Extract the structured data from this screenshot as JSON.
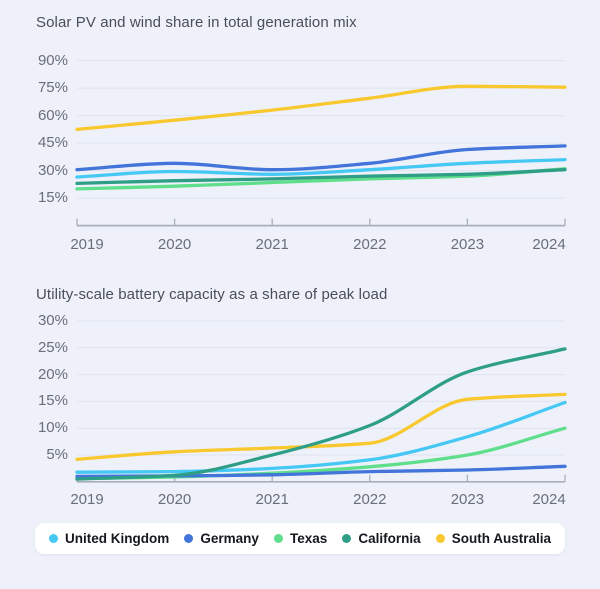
{
  "page": {
    "background_color": "#eef1fa"
  },
  "chart_data": [
    {
      "type": "line",
      "title": "Solar PV and wind share in total generation mix",
      "x": [
        2019,
        2020,
        2021,
        2022,
        2023,
        2024
      ],
      "x_tick_labels": [
        "2019",
        "2020",
        "2021",
        "2022",
        "2023",
        "2024"
      ],
      "y_tick_labels": [
        "90%",
        "75%",
        "60%",
        "45%",
        "30%",
        "15%"
      ],
      "y_tick_values": [
        90,
        75,
        60,
        45,
        30,
        15
      ],
      "ylim": [
        0,
        95
      ],
      "unit": "%",
      "grid": true,
      "series": [
        {
          "name": "United Kingdom",
          "color": "#45c8f4",
          "values": [
            26.5,
            29.5,
            28,
            30.5,
            34,
            36
          ]
        },
        {
          "name": "Germany",
          "color": "#4274da",
          "values": [
            30.5,
            34,
            30.5,
            34,
            41.5,
            43.5
          ]
        },
        {
          "name": "Texas",
          "color": "#5fde8c",
          "values": [
            20,
            21.5,
            23.5,
            25.5,
            27,
            31
          ]
        },
        {
          "name": "California",
          "color": "#2e9e86",
          "values": [
            23,
            24.5,
            25.5,
            27,
            28,
            30.5
          ]
        },
        {
          "name": "South Australia",
          "color": "#f8c82e",
          "values": [
            52.5,
            57.5,
            63,
            69.5,
            76,
            75.5
          ]
        }
      ],
      "draw_order": [
        "Texas",
        "United Kingdom",
        "South Australia",
        "Germany",
        "California"
      ]
    },
    {
      "type": "line",
      "title": "Utility-scale battery capacity as a share of peak load",
      "x": [
        2019,
        2020,
        2021,
        2022,
        2023,
        2024
      ],
      "x_tick_labels": [
        "2019",
        "2020",
        "2021",
        "2022",
        "2023",
        "2024"
      ],
      "y_tick_labels": [
        "30%",
        "25%",
        "20%",
        "15%",
        "10%",
        "5%"
      ],
      "y_tick_values": [
        30,
        25,
        20,
        15,
        10,
        5
      ],
      "ylim": [
        0,
        32
      ],
      "unit": "%",
      "grid": true,
      "series": [
        {
          "name": "United Kingdom",
          "color": "#45c8f4",
          "values": [
            1.8,
            1.9,
            2.5,
            4.1,
            8.4,
            14.8
          ]
        },
        {
          "name": "Germany",
          "color": "#4274da",
          "values": [
            1.0,
            1.1,
            1.3,
            1.9,
            2.2,
            2.9
          ]
        },
        {
          "name": "Texas",
          "color": "#5fde8c",
          "values": [
            0.6,
            0.9,
            1.6,
            2.8,
            5.0,
            10.0
          ]
        },
        {
          "name": "California",
          "color": "#2e9e86",
          "values": [
            0.5,
            1.2,
            5.0,
            10.5,
            20.5,
            24.8
          ]
        },
        {
          "name": "South Australia",
          "color": "#f8c82e",
          "values": [
            4.2,
            5.6,
            6.3,
            7.2,
            15.4,
            16.3
          ]
        }
      ],
      "draw_order": [
        "Texas",
        "United Kingdom",
        "South Australia",
        "Germany",
        "California"
      ]
    }
  ],
  "legend": {
    "items": [
      {
        "label": "United Kingdom",
        "color": "#45c8f4"
      },
      {
        "label": "Germany",
        "color": "#4274da"
      },
      {
        "label": "Texas",
        "color": "#5fde8c"
      },
      {
        "label": "California",
        "color": "#2e9e86"
      },
      {
        "label": "South Australia",
        "color": "#f8c82e"
      }
    ]
  },
  "style": {
    "gridline_color": "#dfe3ee",
    "axis_color": "#a9aeb9",
    "tick_label_color": "#6a6e79",
    "title_color": "#4a4e58",
    "legend_background": "#ffffff"
  }
}
